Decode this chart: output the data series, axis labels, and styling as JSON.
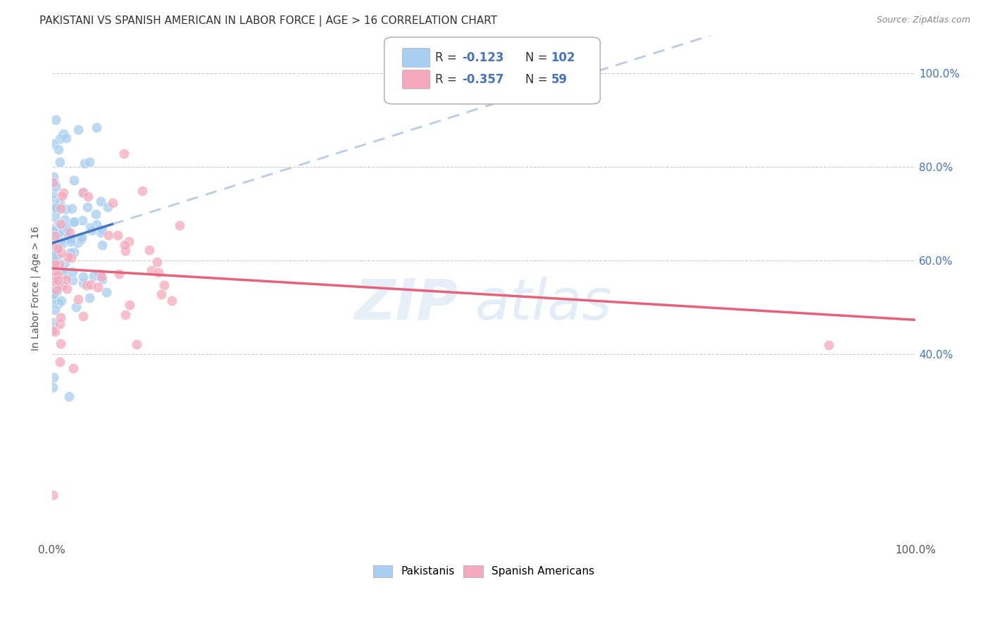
{
  "title": "PAKISTANI VS SPANISH AMERICAN IN LABOR FORCE | AGE > 16 CORRELATION CHART",
  "source": "Source: ZipAtlas.com",
  "ylabel": "In Labor Force | Age > 16",
  "legend_blue_R": "-0.123",
  "legend_blue_N": "102",
  "legend_pink_R": "-0.357",
  "legend_pink_N": "59",
  "blue_color": "#a8cef0",
  "pink_color": "#f4aabe",
  "blue_line_color": "#4472c4",
  "pink_line_color": "#e8607a",
  "dashed_line_color": "#b8cce4",
  "background_color": "#ffffff",
  "grid_color": "#cccccc",
  "right_tick_color": "#4472c4",
  "xlim": [
    0.0,
    1.0
  ],
  "ylim": [
    0.0,
    1.08
  ],
  "x_ticks": [
    0.0,
    0.2,
    0.4,
    0.6,
    0.8,
    1.0
  ],
  "y_ticks": [
    0.4,
    0.6,
    0.8,
    1.0
  ],
  "right_y_labels": [
    "40.0%",
    "60.0%",
    "80.0%",
    "100.0%"
  ]
}
